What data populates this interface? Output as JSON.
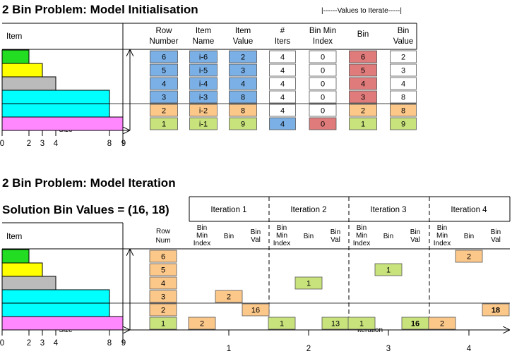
{
  "section1": {
    "title": "2 Bin Problem: Model Initialisation",
    "iterate_label": "|------Values to Iterate-----|",
    "item_label": "Item",
    "size_label": "Size",
    "headers": [
      [
        "Row",
        "Number"
      ],
      [
        "Item",
        "Name"
      ],
      [
        "Item",
        "Value"
      ],
      [
        "#",
        "Iters"
      ],
      [
        "Bin Min",
        "Index"
      ],
      [
        "Bin"
      ],
      [
        "Bin",
        "Value"
      ]
    ],
    "rows": [
      [
        "6",
        "i-6",
        "2",
        "4",
        "0",
        "6",
        "2"
      ],
      [
        "5",
        "i-5",
        "3",
        "4",
        "0",
        "5",
        "3"
      ],
      [
        "4",
        "i-4",
        "4",
        "4",
        "0",
        "4",
        "4"
      ],
      [
        "3",
        "i-3",
        "8",
        "4",
        "0",
        "3",
        "8"
      ],
      [
        "2",
        "i-2",
        "8",
        "4",
        "0",
        "2",
        "8"
      ],
      [
        "1",
        "i-1",
        "9",
        "4",
        "0",
        "1",
        "9"
      ]
    ],
    "axis_ticks": [
      "0",
      "2",
      "3",
      "4",
      "8",
      "9"
    ]
  },
  "section2": {
    "title": "2 Bin Problem: Model Iteration",
    "solution": "Solution Bin Values = (16, 18)",
    "item_label": "Item",
    "size_label": "Size",
    "iteration_label": "Iteration",
    "row_num_header": [
      "Row",
      "Num"
    ],
    "sub_headers": [
      [
        "Bin",
        "Min",
        "Index"
      ],
      [
        "Bin"
      ],
      [
        "Bin",
        "Val"
      ]
    ],
    "iterations": [
      "Iteration 1",
      "Iteration 2",
      "Iteration 3",
      "Iteration 4"
    ],
    "row_nums": [
      "6",
      "5",
      "4",
      "3",
      "2",
      "1"
    ],
    "cells": [
      {
        "iter": 1,
        "row": 1,
        "col": 0,
        "text": "2",
        "bold": false
      },
      {
        "iter": 1,
        "row": 3,
        "col": 1,
        "text": "2",
        "bold": false
      },
      {
        "iter": 1,
        "row": 2,
        "col": 2,
        "text": "16",
        "bold": false
      },
      {
        "iter": 2,
        "row": 1,
        "col": 0,
        "text": "1",
        "bold": false
      },
      {
        "iter": 2,
        "row": 4,
        "col": 1,
        "text": "1",
        "bold": false
      },
      {
        "iter": 2,
        "row": 1,
        "col": 2,
        "text": "13",
        "bold": false
      },
      {
        "iter": 3,
        "row": 1,
        "col": 0,
        "text": "1",
        "bold": false
      },
      {
        "iter": 3,
        "row": 5,
        "col": 1,
        "text": "1",
        "bold": false
      },
      {
        "iter": 3,
        "row": 1,
        "col": 2,
        "text": "16",
        "bold": true
      },
      {
        "iter": 4,
        "row": 1,
        "col": 0,
        "text": "2",
        "bold": false
      },
      {
        "iter": 4,
        "row": 6,
        "col": 1,
        "text": "2",
        "bold": false
      },
      {
        "iter": 4,
        "row": 2,
        "col": 2,
        "text": "18",
        "bold": true
      }
    ],
    "iter_ticks": [
      "1",
      "2",
      "3",
      "4"
    ],
    "axis_ticks": [
      "0",
      "2",
      "3",
      "4",
      "8",
      "9"
    ]
  },
  "item_sizes": [
    2,
    3,
    4,
    8,
    8,
    9
  ],
  "item_colors": [
    "#22dd22",
    "#ffff00",
    "#bbbbbb",
    "#00ffff",
    "#00ffff",
    "#ff88ff"
  ],
  "colors": {
    "blue": "#7bb0e6",
    "orange": "#fcc88a",
    "green": "#c8e27c",
    "red": "#e07b7b",
    "white": "#ffffff"
  }
}
